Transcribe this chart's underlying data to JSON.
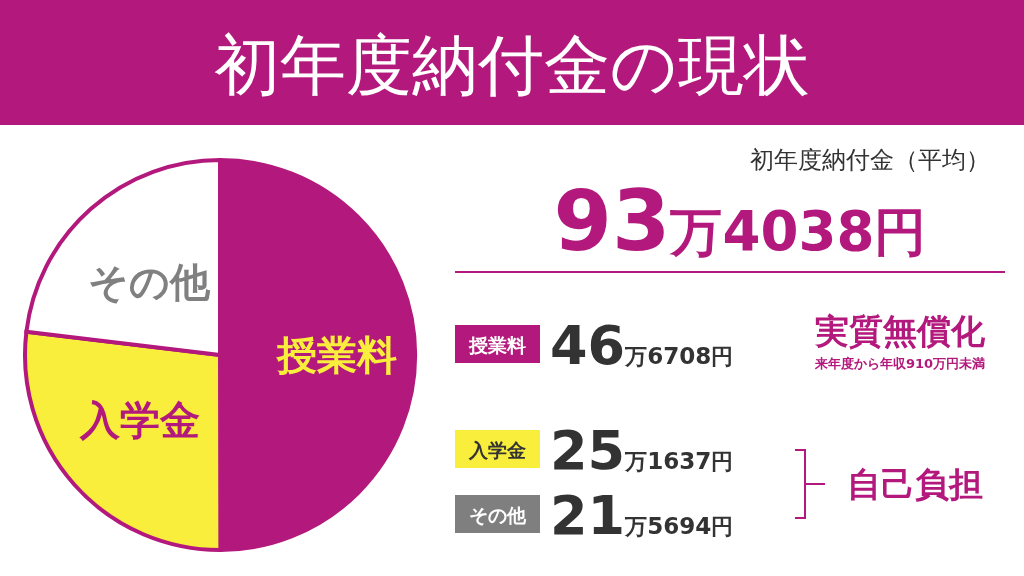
{
  "chart_data": {
    "type": "pie",
    "title": "初年度納付金の現状",
    "categories": [
      "授業料",
      "入学金",
      "その他"
    ],
    "values": [
      49.97,
      26.94,
      23.09
    ],
    "colors": [
      "#b3197c",
      "#f9ee3c",
      "#ffffff"
    ],
    "legend": "right",
    "annotations": [
      "初年度納付金（平均）",
      "93万4038円",
      "実質無償化",
      "来年度から年収910万円未満",
      "自己負担",
      "46万6708円",
      "25万1637円",
      "21万5694円"
    ]
  }
}
